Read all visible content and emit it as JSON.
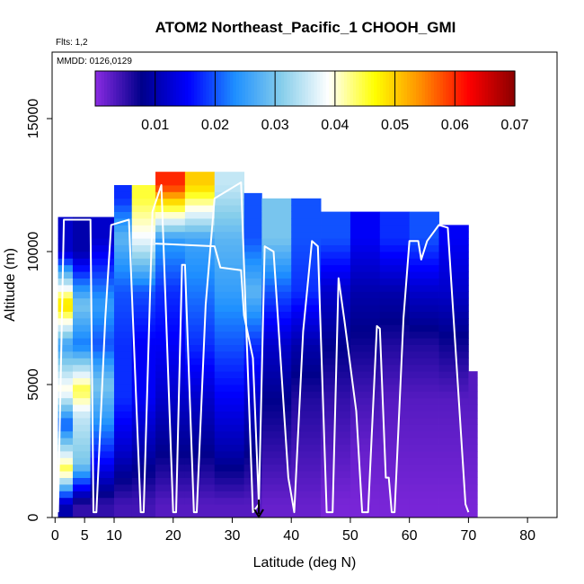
{
  "chart_data": {
    "type": "heatmap",
    "title": "ATOM2 Northeast_Pacific_1 CHOOH_GMI",
    "annotations": [
      "Flts: 1,2",
      "MMDD: 0126,0129"
    ],
    "xlabel": "Latitude (deg N)",
    "ylabel": "Altitude (m)",
    "xlim": [
      -0.5,
      85
    ],
    "ylim": [
      0,
      17500
    ],
    "x_ticks": [
      0,
      5,
      10,
      20,
      30,
      40,
      50,
      60,
      70,
      80
    ],
    "y_ticks": [
      0,
      5000,
      10000,
      15000
    ],
    "colorbar": {
      "range": [
        0,
        0.07
      ],
      "ticks": [
        0.01,
        0.02,
        0.03,
        0.04,
        0.05,
        0.06,
        0.07
      ],
      "tick_labels": [
        "0.01",
        "0.02",
        "0.03",
        "0.04",
        "0.05",
        "0.06",
        "0.07"
      ],
      "colors": [
        "#8a2be2",
        "#00008b",
        "#0000ff",
        "#1e90ff",
        "#87ceeb",
        "#ffffff",
        "#ffff00",
        "#ff8c00",
        "#ff0000",
        "#8b0000"
      ],
      "placement": "top-inside"
    },
    "grid": false,
    "marker": {
      "latitude": 34.5,
      "description": "downward arrow at x-axis"
    },
    "curtain": [
      {
        "lat0": 0.5,
        "lat1": 3,
        "alt_top": 11300,
        "levels": [
          {
            "alt": 500,
            "v": 0.01
          },
          {
            "alt": 1800,
            "v": 0.045
          },
          {
            "alt": 3500,
            "v": 0.02
          },
          {
            "alt": 4800,
            "v": 0.04
          },
          {
            "alt": 6500,
            "v": 0.025
          },
          {
            "alt": 8000,
            "v": 0.05
          },
          {
            "alt": 10000,
            "v": 0.012
          }
        ]
      },
      {
        "lat0": 3,
        "lat1": 6,
        "alt_top": 11300,
        "levels": [
          {
            "alt": 500,
            "v": 0.005
          },
          {
            "alt": 2000,
            "v": 0.03
          },
          {
            "alt": 3800,
            "v": 0.035
          },
          {
            "alt": 4800,
            "v": 0.045
          },
          {
            "alt": 6500,
            "v": 0.022
          },
          {
            "alt": 8000,
            "v": 0.03
          },
          {
            "alt": 10000,
            "v": 0.01
          }
        ]
      },
      {
        "lat0": 6,
        "lat1": 10,
        "alt_top": 11300,
        "levels": [
          {
            "alt": 500,
            "v": 0.005
          },
          {
            "alt": 2000,
            "v": 0.015
          },
          {
            "alt": 3800,
            "v": 0.025
          },
          {
            "alt": 5000,
            "v": 0.03
          },
          {
            "alt": 6500,
            "v": 0.02
          },
          {
            "alt": 8000,
            "v": 0.025
          },
          {
            "alt": 10500,
            "v": 0.012
          }
        ]
      },
      {
        "lat0": 10,
        "lat1": 13,
        "alt_top": 12500,
        "levels": [
          {
            "alt": 500,
            "v": 0.004
          },
          {
            "alt": 2500,
            "v": 0.012
          },
          {
            "alt": 4500,
            "v": 0.018
          },
          {
            "alt": 6500,
            "v": 0.018
          },
          {
            "alt": 8500,
            "v": 0.02
          },
          {
            "alt": 10500,
            "v": 0.028
          },
          {
            "alt": 12000,
            "v": 0.018
          }
        ]
      },
      {
        "lat0": 13,
        "lat1": 17,
        "alt_top": 12500,
        "levels": [
          {
            "alt": 500,
            "v": 0.004
          },
          {
            "alt": 2500,
            "v": 0.01
          },
          {
            "alt": 4500,
            "v": 0.015
          },
          {
            "alt": 6500,
            "v": 0.015
          },
          {
            "alt": 8500,
            "v": 0.02
          },
          {
            "alt": 10500,
            "v": 0.038
          },
          {
            "alt": 12000,
            "v": 0.045
          }
        ]
      },
      {
        "lat0": 17,
        "lat1": 22,
        "alt_top": 13000,
        "levels": [
          {
            "alt": 500,
            "v": 0.003
          },
          {
            "alt": 2500,
            "v": 0.008
          },
          {
            "alt": 4500,
            "v": 0.012
          },
          {
            "alt": 6500,
            "v": 0.015
          },
          {
            "alt": 8500,
            "v": 0.018
          },
          {
            "alt": 10500,
            "v": 0.025
          },
          {
            "alt": 12500,
            "v": 0.06
          }
        ]
      },
      {
        "lat0": 22,
        "lat1": 27,
        "alt_top": 13000,
        "levels": [
          {
            "alt": 500,
            "v": 0.003
          },
          {
            "alt": 2500,
            "v": 0.008
          },
          {
            "alt": 4500,
            "v": 0.012
          },
          {
            "alt": 6500,
            "v": 0.018
          },
          {
            "alt": 8500,
            "v": 0.022
          },
          {
            "alt": 10500,
            "v": 0.026
          },
          {
            "alt": 12500,
            "v": 0.05
          }
        ]
      },
      {
        "lat0": 27,
        "lat1": 32,
        "alt_top": 13000,
        "levels": [
          {
            "alt": 500,
            "v": 0.003
          },
          {
            "alt": 2500,
            "v": 0.01
          },
          {
            "alt": 4500,
            "v": 0.015
          },
          {
            "alt": 6500,
            "v": 0.02
          },
          {
            "alt": 8500,
            "v": 0.025
          },
          {
            "alt": 10500,
            "v": 0.028
          },
          {
            "alt": 12500,
            "v": 0.035
          }
        ]
      },
      {
        "lat0": 32,
        "lat1": 35,
        "alt_top": 12200,
        "levels": [
          {
            "alt": 500,
            "v": 0.003
          },
          {
            "alt": 2500,
            "v": 0.008
          },
          {
            "alt": 4500,
            "v": 0.012
          },
          {
            "alt": 6500,
            "v": 0.018
          },
          {
            "alt": 8500,
            "v": 0.028
          },
          {
            "alt": 10500,
            "v": 0.02
          }
        ]
      },
      {
        "lat0": 35,
        "lat1": 40,
        "alt_top": 12000,
        "levels": [
          {
            "alt": 500,
            "v": 0.002
          },
          {
            "alt": 2500,
            "v": 0.005
          },
          {
            "alt": 4500,
            "v": 0.008
          },
          {
            "alt": 6500,
            "v": 0.012
          },
          {
            "alt": 8500,
            "v": 0.02
          },
          {
            "alt": 10500,
            "v": 0.03
          }
        ]
      },
      {
        "lat0": 40,
        "lat1": 45,
        "alt_top": 12000,
        "levels": [
          {
            "alt": 500,
            "v": 0.002
          },
          {
            "alt": 2500,
            "v": 0.004
          },
          {
            "alt": 4500,
            "v": 0.006
          },
          {
            "alt": 6500,
            "v": 0.01
          },
          {
            "alt": 8500,
            "v": 0.018
          },
          {
            "alt": 10500,
            "v": 0.02
          }
        ]
      },
      {
        "lat0": 45,
        "lat1": 50,
        "alt_top": 11500,
        "levels": [
          {
            "alt": 500,
            "v": 0.001
          },
          {
            "alt": 2500,
            "v": 0.003
          },
          {
            "alt": 4500,
            "v": 0.005
          },
          {
            "alt": 6500,
            "v": 0.008
          },
          {
            "alt": 8500,
            "v": 0.012
          },
          {
            "alt": 10500,
            "v": 0.02
          }
        ]
      },
      {
        "lat0": 50,
        "lat1": 55,
        "alt_top": 11500,
        "levels": [
          {
            "alt": 500,
            "v": 0.001
          },
          {
            "alt": 2500,
            "v": 0.002
          },
          {
            "alt": 4500,
            "v": 0.004
          },
          {
            "alt": 6500,
            "v": 0.007
          },
          {
            "alt": 8500,
            "v": 0.01
          },
          {
            "alt": 10500,
            "v": 0.015
          }
        ]
      },
      {
        "lat0": 55,
        "lat1": 60,
        "alt_top": 11500,
        "levels": [
          {
            "alt": 500,
            "v": 0.001
          },
          {
            "alt": 2500,
            "v": 0.002
          },
          {
            "alt": 4500,
            "v": 0.003
          },
          {
            "alt": 6500,
            "v": 0.006
          },
          {
            "alt": 8500,
            "v": 0.01
          },
          {
            "alt": 10500,
            "v": 0.018
          }
        ]
      },
      {
        "lat0": 60,
        "lat1": 65,
        "alt_top": 11500,
        "levels": [
          {
            "alt": 500,
            "v": 0.001
          },
          {
            "alt": 2500,
            "v": 0.002
          },
          {
            "alt": 4500,
            "v": 0.003
          },
          {
            "alt": 6500,
            "v": 0.006
          },
          {
            "alt": 8500,
            "v": 0.012
          },
          {
            "alt": 10500,
            "v": 0.02
          }
        ]
      },
      {
        "lat0": 65,
        "lat1": 70,
        "alt_top": 11000,
        "levels": [
          {
            "alt": 500,
            "v": 0.001
          },
          {
            "alt": 2500,
            "v": 0.002
          },
          {
            "alt": 4500,
            "v": 0.003
          },
          {
            "alt": 6500,
            "v": 0.007
          },
          {
            "alt": 8500,
            "v": 0.012
          },
          {
            "alt": 10500,
            "v": 0.015
          }
        ]
      },
      {
        "lat0": 70,
        "lat1": 71.5,
        "alt_top": 5500,
        "levels": [
          {
            "alt": 500,
            "v": 0.001
          },
          {
            "alt": 2500,
            "v": 0.002
          },
          {
            "alt": 4500,
            "v": 0.003
          }
        ]
      }
    ],
    "flight_track": [
      {
        "lat": 0.5,
        "alt": 200
      },
      {
        "lat": 1.5,
        "alt": 11200
      },
      {
        "lat": 6,
        "alt": 11200
      },
      {
        "lat": 6.5,
        "alt": 200
      },
      {
        "lat": 7,
        "alt": 200
      },
      {
        "lat": 8.5,
        "alt": 7500
      },
      {
        "lat": 9.5,
        "alt": 11000
      },
      {
        "lat": 12.5,
        "alt": 11200
      },
      {
        "lat": 14.5,
        "alt": 200
      },
      {
        "lat": 15,
        "alt": 200
      },
      {
        "lat": 16.5,
        "alt": 11500
      },
      {
        "lat": 18,
        "alt": 12500
      },
      {
        "lat": 20,
        "alt": 200
      },
      {
        "lat": 20.5,
        "alt": 200
      },
      {
        "lat": 21.5,
        "alt": 9500
      },
      {
        "lat": 22,
        "alt": 9500
      },
      {
        "lat": 23.5,
        "alt": 200
      },
      {
        "lat": 24,
        "alt": 200
      },
      {
        "lat": 25.5,
        "alt": 8000
      },
      {
        "lat": 27,
        "alt": 12000
      },
      {
        "lat": 31.5,
        "alt": 12600
      },
      {
        "lat": 33.5,
        "alt": 200
      },
      {
        "lat": 34.5,
        "alt": 500
      }
    ],
    "flight_track_2": [
      {
        "lat": 17,
        "alt": 10300
      },
      {
        "lat": 27,
        "alt": 10200
      },
      {
        "lat": 28,
        "alt": 9400
      },
      {
        "lat": 31.5,
        "alt": 9300
      },
      {
        "lat": 32,
        "alt": 7600
      },
      {
        "lat": 33.5,
        "alt": 6000
      },
      {
        "lat": 34.5,
        "alt": 500
      },
      {
        "lat": 35.5,
        "alt": 10200
      },
      {
        "lat": 37,
        "alt": 10000
      },
      {
        "lat": 39.5,
        "alt": 1500
      },
      {
        "lat": 40.5,
        "alt": 200
      },
      {
        "lat": 42,
        "alt": 7000
      },
      {
        "lat": 43.5,
        "alt": 10400
      },
      {
        "lat": 44.5,
        "alt": 10200
      },
      {
        "lat": 46,
        "alt": 200
      },
      {
        "lat": 47,
        "alt": 200
      },
      {
        "lat": 48,
        "alt": 9000
      },
      {
        "lat": 49,
        "alt": 7400
      },
      {
        "lat": 51,
        "alt": 4000
      },
      {
        "lat": 52,
        "alt": 200
      },
      {
        "lat": 53,
        "alt": 200
      },
      {
        "lat": 54.5,
        "alt": 7200
      },
      {
        "lat": 55,
        "alt": 7100
      },
      {
        "lat": 56,
        "alt": 1500
      },
      {
        "lat": 56.5,
        "alt": 1500
      },
      {
        "lat": 57,
        "alt": 200
      },
      {
        "lat": 57.5,
        "alt": 200
      },
      {
        "lat": 59,
        "alt": 7500
      },
      {
        "lat": 60,
        "alt": 10400
      },
      {
        "lat": 61.5,
        "alt": 10400
      },
      {
        "lat": 62,
        "alt": 9700
      },
      {
        "lat": 63,
        "alt": 10400
      },
      {
        "lat": 65,
        "alt": 11000
      },
      {
        "lat": 66.5,
        "alt": 10900
      },
      {
        "lat": 69.5,
        "alt": 500
      },
      {
        "lat": 70,
        "alt": 200
      }
    ]
  }
}
